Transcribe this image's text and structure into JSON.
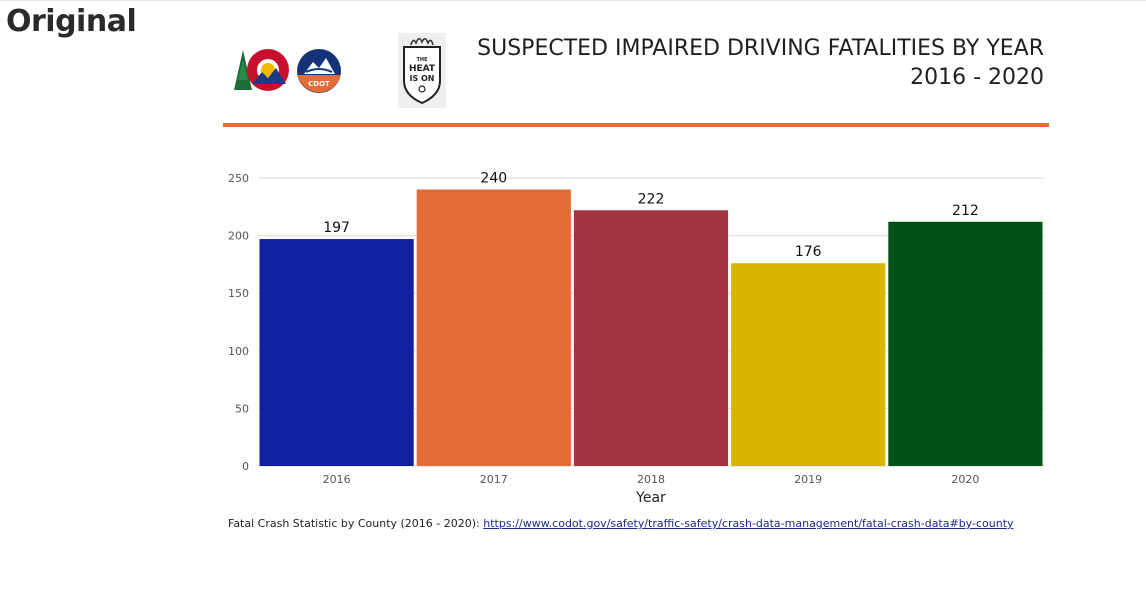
{
  "page_label": "Original",
  "header": {
    "logo_cdot_text": "CDOT",
    "logo_heat_lines": [
      "THE",
      "HEAT",
      "IS ON"
    ],
    "title_line1": "SUSPECTED IMPAIRED DRIVING FATALITIES BY YEAR",
    "title_line2": "2016 - 2020"
  },
  "footnote": {
    "text": "Fatal Crash Statistic by County (2016 - 2020):",
    "link_text": "https://www.codot.gov/safety/traffic-safety/crash-data-management/fatal-crash-data#by-county"
  },
  "chart_data": {
    "type": "bar",
    "categories": [
      "2016",
      "2017",
      "2018",
      "2019",
      "2020"
    ],
    "values": [
      197,
      240,
      222,
      176,
      212
    ],
    "data_labels": [
      "197",
      "240",
      "222",
      "176",
      "212"
    ],
    "colors": [
      "#1020a0",
      "#e46c36",
      "#a23340",
      "#d9b400",
      "#00501a"
    ],
    "title": "",
    "xlabel": "Year",
    "ylabel": "",
    "ylim": [
      0,
      250
    ],
    "yticks": [
      0,
      50,
      100,
      150,
      200,
      250
    ],
    "grid": true,
    "legend": "none"
  }
}
